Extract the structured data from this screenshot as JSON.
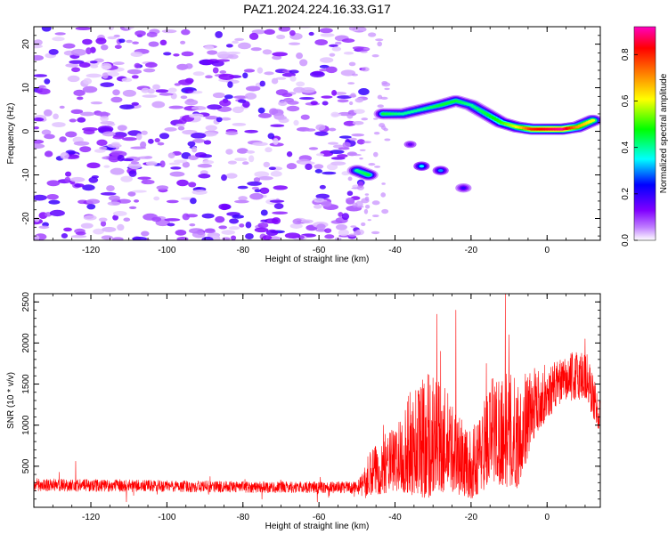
{
  "title": "PAZ1.2024.224.16.33.G17",
  "chart_data": [
    {
      "type": "heatmap",
      "title": "PAZ1.2024.224.16.33.G17",
      "xlabel": "Height of straight line (km)",
      "ylabel": "Frequency (Hz)",
      "xlim": [
        -135,
        14
      ],
      "ylim": [
        -25,
        24
      ],
      "xticks": [
        -120,
        -100,
        -80,
        -60,
        -40,
        -20,
        0
      ],
      "yticks": [
        -20,
        -10,
        0,
        10,
        20
      ],
      "colorbar": {
        "label": "Normalized spectral amplitude",
        "range": [
          0,
          0.92
        ],
        "ticks": [
          0.0,
          0.2,
          0.4,
          0.6,
          0.8
        ],
        "colors": [
          "#ffffff",
          "#8000ff",
          "#0000ff",
          "#00ffff",
          "#00ff00",
          "#ffff00",
          "#ff8000",
          "#ff0000",
          "#ff00c0"
        ]
      },
      "noise_region": {
        "x_range": [
          -135,
          -48
        ],
        "y_range": [
          -25,
          24
        ],
        "level_range": [
          0.02,
          0.2
        ]
      },
      "ridge": [
        {
          "x": -50,
          "y": -9,
          "amp": 0.4
        },
        {
          "x": -47,
          "y": -10,
          "amp": 0.45
        },
        {
          "x": -43,
          "y": 4,
          "amp": 0.45
        },
        {
          "x": -38,
          "y": 4,
          "amp": 0.4
        },
        {
          "x": -33,
          "y": 5,
          "amp": 0.4
        },
        {
          "x": -28,
          "y": 6,
          "amp": 0.45
        },
        {
          "x": -24,
          "y": 7,
          "amp": 0.45
        },
        {
          "x": -20,
          "y": 6,
          "amp": 0.4
        },
        {
          "x": -16,
          "y": 4,
          "amp": 0.45
        },
        {
          "x": -12,
          "y": 2,
          "amp": 0.5
        },
        {
          "x": -8,
          "y": 1,
          "amp": 0.6
        },
        {
          "x": -4,
          "y": 0.5,
          "amp": 0.8
        },
        {
          "x": 0,
          "y": 0.5,
          "amp": 0.85
        },
        {
          "x": 4,
          "y": 0.5,
          "amp": 0.9
        },
        {
          "x": 8,
          "y": 1,
          "amp": 0.7
        },
        {
          "x": 12,
          "y": 2.5,
          "amp": 0.6
        },
        {
          "x": -33,
          "y": -8,
          "amp": 0.35
        },
        {
          "x": -28,
          "y": -9,
          "amp": 0.3
        },
        {
          "x": -22,
          "y": -13,
          "amp": 0.2
        },
        {
          "x": -36,
          "y": -3,
          "amp": 0.15
        }
      ]
    },
    {
      "type": "line",
      "xlabel": "Height of straight line (km)",
      "ylabel": "SNR (10 * v/v)",
      "xlim": [
        -135,
        14
      ],
      "ylim": [
        0,
        2600
      ],
      "xticks": [
        -120,
        -100,
        -80,
        -60,
        -40,
        -20,
        0
      ],
      "yticks": [
        500,
        1000,
        1500,
        2000,
        2500
      ],
      "color": "#ff0000",
      "envelope": [
        {
          "x": -135,
          "low": 60,
          "high": 450
        },
        {
          "x": -80,
          "low": 60,
          "high": 400
        },
        {
          "x": -50,
          "low": 50,
          "high": 400
        },
        {
          "x": -45,
          "low": 150,
          "high": 800
        },
        {
          "x": -40,
          "low": 200,
          "high": 1000
        },
        {
          "x": -32,
          "low": 100,
          "high": 1800
        },
        {
          "x": -26,
          "low": 200,
          "high": 1400
        },
        {
          "x": -20,
          "low": 100,
          "high": 900
        },
        {
          "x": -14,
          "low": 300,
          "high": 1700
        },
        {
          "x": -8,
          "low": 200,
          "high": 1600
        },
        {
          "x": -3,
          "low": 900,
          "high": 1700
        },
        {
          "x": 4,
          "low": 1300,
          "high": 1800
        },
        {
          "x": 10,
          "low": 1300,
          "high": 2000
        },
        {
          "x": 14,
          "low": 900,
          "high": 1300
        }
      ],
      "peaks": [
        {
          "x": -124,
          "y": 560
        },
        {
          "x": -43,
          "y": 1000
        },
        {
          "x": -36,
          "y": 1400
        },
        {
          "x": -29,
          "y": 2350
        },
        {
          "x": -28,
          "y": 1900
        },
        {
          "x": -24,
          "y": 2400
        },
        {
          "x": -16,
          "y": 1750
        },
        {
          "x": -11,
          "y": 2600
        },
        {
          "x": -10,
          "y": 2100
        },
        {
          "x": 10,
          "y": 2050
        }
      ]
    }
  ]
}
